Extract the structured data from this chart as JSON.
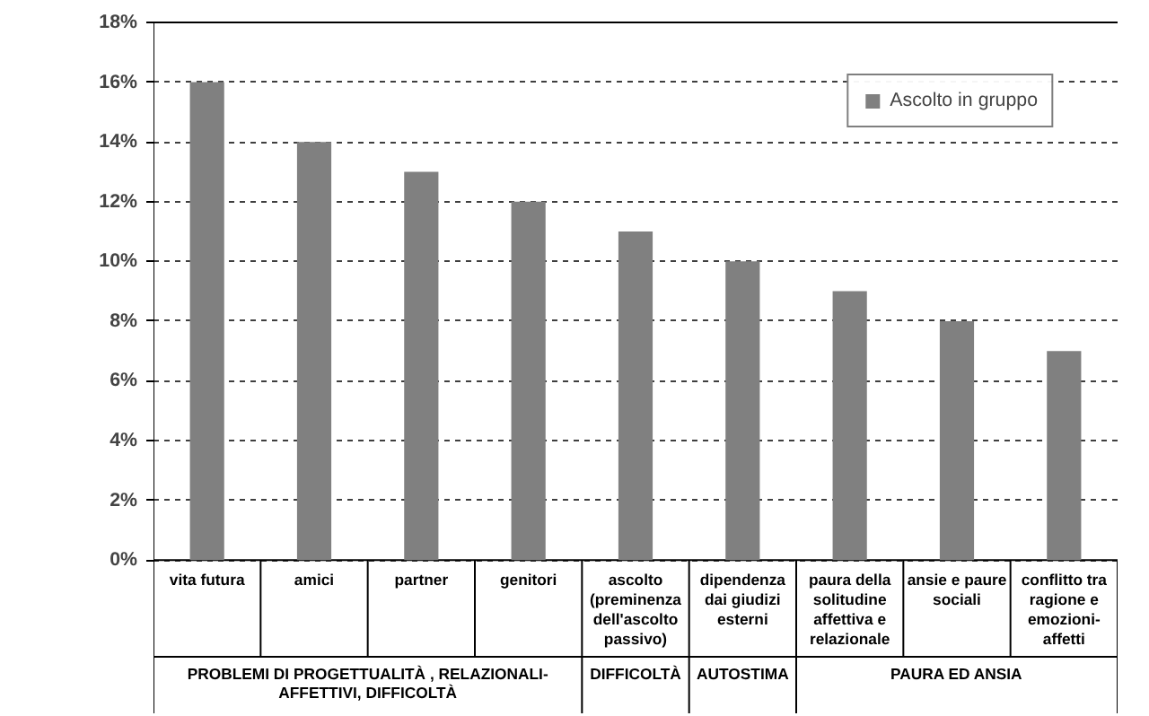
{
  "chart_data": {
    "type": "bar",
    "categories": [
      "vita futura",
      "amici",
      "partner",
      "genitori",
      "ascolto (preminenza dell'ascolto passivo)",
      "dipendenza dai giudizi esterni",
      "paura della solitudine affettiva e relazionale",
      "ansie e paure sociali",
      "conflitto tra ragione e emozioni-affetti"
    ],
    "series": [
      {
        "name": "Ascolto in gruppo",
        "color": "#808080",
        "values": [
          16,
          14,
          13,
          12,
          11,
          10,
          9,
          8,
          7
        ]
      }
    ],
    "ylim": [
      0,
      18
    ],
    "yticks": [
      {
        "value": 0,
        "label": "0%"
      },
      {
        "value": 2,
        "label": "2%"
      },
      {
        "value": 4,
        "label": "4%"
      },
      {
        "value": 6,
        "label": "6%"
      },
      {
        "value": 8,
        "label": "8%"
      },
      {
        "value": 10,
        "label": "10%"
      },
      {
        "value": 12,
        "label": "12%"
      },
      {
        "value": 14,
        "label": "14%"
      },
      {
        "value": 16,
        "label": "16%"
      },
      {
        "value": 18,
        "label": "18%"
      }
    ],
    "grid": "y",
    "legend": "top right",
    "annotations": [
      "PROBLEMI DI PROGETTUALITÀ , RELAZIONALI-AFFETTIVI, DIFFICOLTÀ",
      "DIFFICOLTÀ",
      "AUTOSTIMA",
      "PAURA ED ANSIA"
    ]
  }
}
